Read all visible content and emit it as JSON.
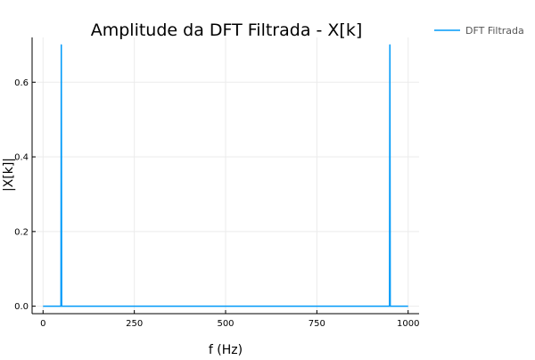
{
  "chart_data": {
    "type": "line",
    "title": "Amplitude da DFT Filtrada - X[k]",
    "xlabel": "f (Hz)",
    "ylabel": "|X[k]|",
    "xlim": [
      -30,
      1030
    ],
    "ylim": [
      -0.02,
      0.72
    ],
    "grid": true,
    "legend_position": "top-right",
    "x_ticks": [
      0,
      250,
      500,
      750,
      1000
    ],
    "x_tick_labels": [
      "0",
      "250",
      "500",
      "750",
      "1000"
    ],
    "y_ticks": [
      0.0,
      0.2,
      0.4,
      0.6
    ],
    "y_tick_labels": [
      "0.0",
      "0.2",
      "0.4",
      "0.6"
    ],
    "series": [
      {
        "name": "DFT Filtrada",
        "color": "#009af9",
        "x": [
          0,
          48,
          49,
          50,
          51,
          52,
          948,
          949,
          950,
          951,
          952,
          1000
        ],
        "y": [
          0,
          0,
          0,
          0.7,
          0,
          0,
          0,
          0,
          0.7,
          0,
          0,
          0
        ]
      }
    ]
  }
}
